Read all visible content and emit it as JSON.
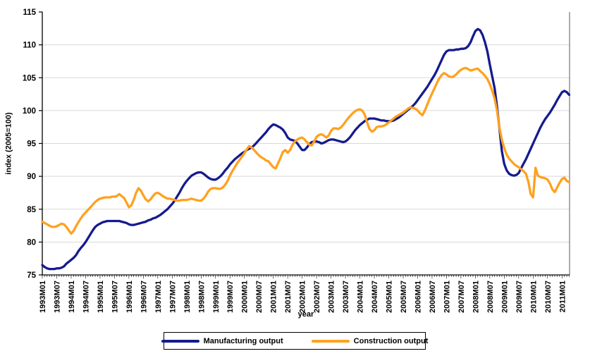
{
  "chart_data": {
    "type": "line",
    "title": "",
    "xlabel": "year",
    "ylabel": "index (2005=100)",
    "ylim": [
      75,
      115
    ],
    "yticks": [
      75,
      80,
      85,
      90,
      95,
      100,
      105,
      110,
      115
    ],
    "grid": "horizontal",
    "legend_position": "bottom-center",
    "x_start": "1993M01",
    "x_end": "2011M04",
    "xtick_every_months": 6,
    "xtick_labels": [
      "1993M01",
      "1993M07",
      "1994M01",
      "1994M07",
      "1995M01",
      "1995M07",
      "1996M01",
      "1996M07",
      "1997M01",
      "1997M07",
      "1998M01",
      "1998M07",
      "1999M01",
      "1999M07",
      "2000M01",
      "2000M07",
      "2001M01",
      "2001M07",
      "2002M01",
      "2002M07",
      "2003M01",
      "2003M07",
      "2004M01",
      "2004M07",
      "2005M01",
      "2005M07",
      "2006M01",
      "2006M07",
      "2007M01",
      "2007M07",
      "2008M01",
      "2008M07",
      "2009M01",
      "2009M07",
      "2010M01",
      "2010M07",
      "2011M01"
    ],
    "colors": {
      "manufacturing": "#151b8d",
      "construction": "#ffa11f",
      "gridline": "#d9d9d9",
      "axis": "#000000",
      "right_border": "#5a5a5a"
    },
    "series": [
      {
        "name": "Manufacturing output",
        "color": "#151b8d",
        "values": [
          76.5,
          76.2,
          76.0,
          75.9,
          75.9,
          75.9,
          76.0,
          76.0,
          76.1,
          76.3,
          76.7,
          77.0,
          77.3,
          77.6,
          78.0,
          78.6,
          79.1,
          79.5,
          80.0,
          80.6,
          81.2,
          81.8,
          82.3,
          82.6,
          82.8,
          83.0,
          83.1,
          83.2,
          83.2,
          83.2,
          83.2,
          83.2,
          83.2,
          83.1,
          83.0,
          82.9,
          82.7,
          82.6,
          82.6,
          82.7,
          82.8,
          82.9,
          83.0,
          83.1,
          83.3,
          83.4,
          83.6,
          83.7,
          83.9,
          84.1,
          84.4,
          84.7,
          85.0,
          85.4,
          85.8,
          86.3,
          86.9,
          87.5,
          88.2,
          88.8,
          89.3,
          89.7,
          90.1,
          90.3,
          90.5,
          90.6,
          90.6,
          90.4,
          90.1,
          89.8,
          89.6,
          89.5,
          89.5,
          89.7,
          90.0,
          90.4,
          90.9,
          91.3,
          91.8,
          92.2,
          92.6,
          92.9,
          93.2,
          93.5,
          93.7,
          94.0,
          94.2,
          94.4,
          94.7,
          95.1,
          95.5,
          95.9,
          96.3,
          96.7,
          97.2,
          97.6,
          97.9,
          97.8,
          97.6,
          97.4,
          97.1,
          96.6,
          95.9,
          95.6,
          95.5,
          95.4,
          95.0,
          94.5,
          94.0,
          94.0,
          94.4,
          94.9,
          95.2,
          95.3,
          95.3,
          95.2,
          95.0,
          95.1,
          95.3,
          95.5,
          95.6,
          95.6,
          95.5,
          95.4,
          95.3,
          95.2,
          95.3,
          95.6,
          96.0,
          96.5,
          97.0,
          97.4,
          97.8,
          98.1,
          98.4,
          98.6,
          98.8,
          98.8,
          98.8,
          98.7,
          98.6,
          98.5,
          98.5,
          98.4,
          98.4,
          98.4,
          98.5,
          98.7,
          98.9,
          99.2,
          99.5,
          99.8,
          100.1,
          100.4,
          100.7,
          101.1,
          101.6,
          102.1,
          102.6,
          103.1,
          103.6,
          104.2,
          104.8,
          105.4,
          106.1,
          106.9,
          107.7,
          108.5,
          109.0,
          109.2,
          109.2,
          109.2,
          109.3,
          109.3,
          109.4,
          109.4,
          109.5,
          109.8,
          110.4,
          111.3,
          112.1,
          112.4,
          112.2,
          111.5,
          110.4,
          109.0,
          107.0,
          105.2,
          103.4,
          100.6,
          97.3,
          93.9,
          91.9,
          90.9,
          90.4,
          90.2,
          90.1,
          90.2,
          90.5,
          91.2,
          91.9,
          92.6,
          93.4,
          94.2,
          95.0,
          95.8,
          96.6,
          97.4,
          98.1,
          98.7,
          99.2,
          99.7,
          100.3,
          100.9,
          101.6,
          102.2,
          102.8,
          103.0,
          102.8,
          102.4
        ]
      },
      {
        "name": "Construction output",
        "color": "#ffa11f",
        "values": [
          83.1,
          82.9,
          82.7,
          82.5,
          82.3,
          82.3,
          82.4,
          82.6,
          82.8,
          82.7,
          82.3,
          81.8,
          81.3,
          81.7,
          82.4,
          83.0,
          83.6,
          84.1,
          84.5,
          84.9,
          85.3,
          85.7,
          86.1,
          86.4,
          86.6,
          86.7,
          86.8,
          86.8,
          86.8,
          86.9,
          86.9,
          87.0,
          87.3,
          87.0,
          86.7,
          86.0,
          85.3,
          85.6,
          86.4,
          87.5,
          88.2,
          87.8,
          87.1,
          86.5,
          86.2,
          86.5,
          87.0,
          87.4,
          87.5,
          87.3,
          87.0,
          86.8,
          86.6,
          86.6,
          86.5,
          86.4,
          86.3,
          86.3,
          86.4,
          86.4,
          86.4,
          86.5,
          86.6,
          86.5,
          86.4,
          86.3,
          86.3,
          86.6,
          87.1,
          87.7,
          88.1,
          88.2,
          88.2,
          88.1,
          88.1,
          88.3,
          88.7,
          89.3,
          90.1,
          90.8,
          91.4,
          92.0,
          92.5,
          93.0,
          93.5,
          94.1,
          94.6,
          94.4,
          94.0,
          93.6,
          93.2,
          92.9,
          92.7,
          92.4,
          92.3,
          91.8,
          91.4,
          91.2,
          92.0,
          92.8,
          93.7,
          94.0,
          93.6,
          94.0,
          94.8,
          95.3,
          95.6,
          95.8,
          95.9,
          95.6,
          95.2,
          94.8,
          94.7,
          95.3,
          96.0,
          96.3,
          96.4,
          96.2,
          95.9,
          96.2,
          96.9,
          97.3,
          97.3,
          97.2,
          97.4,
          97.8,
          98.3,
          98.8,
          99.2,
          99.6,
          99.9,
          100.1,
          100.2,
          100.0,
          99.4,
          98.2,
          97.2,
          96.8,
          97.0,
          97.5,
          97.6,
          97.6,
          97.7,
          97.9,
          98.2,
          98.5,
          98.8,
          99.1,
          99.3,
          99.5,
          99.7,
          100.0,
          100.3,
          100.5,
          100.4,
          100.3,
          100.0,
          99.6,
          99.3,
          100.0,
          100.9,
          101.8,
          102.6,
          103.4,
          104.2,
          104.9,
          105.4,
          105.7,
          105.5,
          105.2,
          105.1,
          105.2,
          105.5,
          105.9,
          106.2,
          106.4,
          106.5,
          106.3,
          106.1,
          106.2,
          106.3,
          106.4,
          106.0,
          105.7,
          105.3,
          104.8,
          104.0,
          103.0,
          101.8,
          100.0,
          97.4,
          95.6,
          94.3,
          93.3,
          92.7,
          92.3,
          91.9,
          91.6,
          91.4,
          91.1,
          90.8,
          90.4,
          89.2,
          87.3,
          86.8,
          91.3,
          90.1,
          89.9,
          89.8,
          89.7,
          89.5,
          88.9,
          88.0,
          87.6,
          88.3,
          89.0,
          89.6,
          89.8,
          89.3,
          89.1
        ]
      }
    ]
  }
}
